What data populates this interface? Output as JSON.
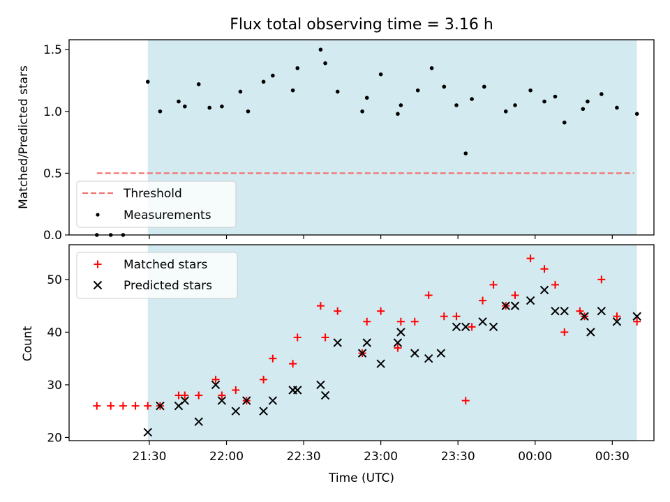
{
  "chart_data": {
    "type": "scatter",
    "title": "Flux total observing time = 3.16 h",
    "xlabel": "Time (UTC)",
    "x_tick_labels": [
      "21:30",
      "22:00",
      "22:30",
      "23:00",
      "23:30",
      "00:00",
      "00:30"
    ],
    "x_tick_hours": [
      21.5,
      22.0,
      22.5,
      23.0,
      23.5,
      24.0,
      24.5
    ],
    "xlim_hours": [
      20.98,
      24.77
    ],
    "shaded_span_hours": [
      21.49,
      24.66
    ],
    "span_color": "#d3eaf0",
    "top": {
      "ylabel": "Matched/Predicted stars",
      "ylim": [
        0,
        1.58
      ],
      "yticks": [
        "0.0",
        "0.5",
        "1.0",
        "1.5"
      ],
      "ytick_values": [
        0,
        0.5,
        1.0,
        1.5
      ],
      "threshold": {
        "name": "Threshold",
        "value": 0.5,
        "x_range": [
          21.16,
          24.64
        ],
        "color": "#f07470"
      },
      "measurements": {
        "name": "Measurements",
        "color": "#000000",
        "x": [
          21.16,
          21.25,
          21.33,
          21.49,
          21.57,
          21.69,
          21.73,
          21.82,
          21.89,
          21.97,
          22.09,
          22.14,
          22.24,
          22.3,
          22.43,
          22.46,
          22.61,
          22.64,
          22.72,
          22.88,
          22.91,
          23.0,
          23.11,
          23.13,
          23.24,
          23.33,
          23.41,
          23.49,
          23.55,
          23.59,
          23.67,
          23.81,
          23.87,
          23.97,
          24.06,
          24.13,
          24.19,
          24.31,
          24.34,
          24.43,
          24.53,
          24.66
        ],
        "y": [
          0.0,
          0.0,
          0.0,
          1.24,
          1.0,
          1.08,
          1.04,
          1.22,
          1.03,
          1.04,
          1.16,
          1.0,
          1.24,
          1.29,
          1.17,
          1.35,
          1.5,
          1.39,
          1.16,
          1.0,
          1.11,
          1.3,
          0.98,
          1.05,
          1.17,
          1.35,
          1.2,
          1.05,
          0.66,
          1.1,
          1.2,
          1.0,
          1.05,
          1.17,
          1.08,
          1.12,
          0.91,
          1.02,
          1.08,
          1.14,
          1.03,
          0.98
        ]
      }
    },
    "bottom": {
      "ylabel": "Count",
      "ylim": [
        19.4,
        56.6
      ],
      "yticks": [
        "20",
        "30",
        "40",
        "50"
      ],
      "ytick_values": [
        20,
        30,
        40,
        50
      ],
      "matched": {
        "name": "Matched stars",
        "color": "#ff0000",
        "x": [
          21.16,
          21.25,
          21.33,
          21.41,
          21.49,
          21.57,
          21.69,
          21.73,
          21.82,
          21.93,
          21.97,
          22.06,
          22.13,
          22.24,
          22.3,
          22.43,
          22.46,
          22.61,
          22.64,
          22.72,
          22.88,
          22.91,
          23.0,
          23.11,
          23.13,
          23.22,
          23.31,
          23.41,
          23.49,
          23.55,
          23.59,
          23.66,
          23.73,
          23.81,
          23.87,
          23.97,
          24.06,
          24.13,
          24.19,
          24.29,
          24.32,
          24.43,
          24.53,
          24.66
        ],
        "y": [
          26,
          26,
          26,
          26,
          26,
          26,
          28,
          28,
          28,
          31,
          28,
          29,
          27,
          31,
          35,
          34,
          39,
          45,
          39,
          44,
          36,
          42,
          44,
          37,
          42,
          42,
          47,
          43,
          43,
          27,
          41,
          46,
          49,
          45,
          47,
          54,
          52,
          49,
          40,
          44,
          43,
          50,
          43,
          42
        ]
      },
      "predicted": {
        "name": "Predicted stars",
        "color": "#000000",
        "x": [
          21.49,
          21.57,
          21.69,
          21.73,
          21.82,
          21.93,
          21.97,
          22.06,
          22.13,
          22.24,
          22.3,
          22.43,
          22.46,
          22.61,
          22.64,
          22.72,
          22.88,
          22.91,
          23.0,
          23.11,
          23.13,
          23.22,
          23.31,
          23.39,
          23.49,
          23.55,
          23.66,
          23.73,
          23.81,
          23.87,
          23.97,
          24.06,
          24.13,
          24.19,
          24.32,
          24.36,
          24.43,
          24.53,
          24.66
        ],
        "y": [
          21,
          26,
          26,
          27,
          23,
          30,
          27,
          25,
          27,
          25,
          27,
          29,
          29,
          30,
          28,
          38,
          36,
          38,
          34,
          38,
          40,
          36,
          35,
          36,
          41,
          41,
          42,
          41,
          45,
          45,
          46,
          48,
          44,
          44,
          43,
          40,
          44,
          42,
          43
        ]
      }
    }
  }
}
